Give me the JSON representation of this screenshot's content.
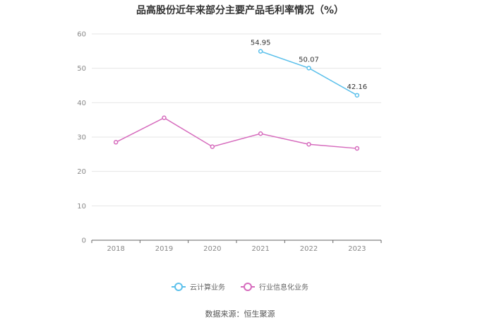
{
  "chart_data": {
    "type": "line",
    "title": "品高股份近年来部分主要产品毛利率情况（%）",
    "categories": [
      "2018",
      "2019",
      "2020",
      "2021",
      "2022",
      "2023"
    ],
    "series": [
      {
        "name": "云计算业务",
        "color": "#5bc0eb",
        "values": [
          null,
          null,
          null,
          54.95,
          50.07,
          42.16
        ],
        "labels": [
          null,
          null,
          null,
          "54.95",
          "50.07",
          "42.16"
        ]
      },
      {
        "name": "行业信息化业务",
        "color": "#d66bbd",
        "values": [
          28.5,
          35.6,
          27.2,
          31.0,
          27.9,
          26.7
        ],
        "labels": [
          null,
          null,
          null,
          null,
          null,
          null
        ]
      }
    ],
    "ylim": [
      0,
      60
    ],
    "yticks": [
      "0",
      "10",
      "20",
      "30",
      "40",
      "50",
      "60"
    ],
    "xlabel": "",
    "ylabel": "",
    "grid": true,
    "legend_position": "bottom",
    "source": "数据来源：恒生聚源"
  }
}
